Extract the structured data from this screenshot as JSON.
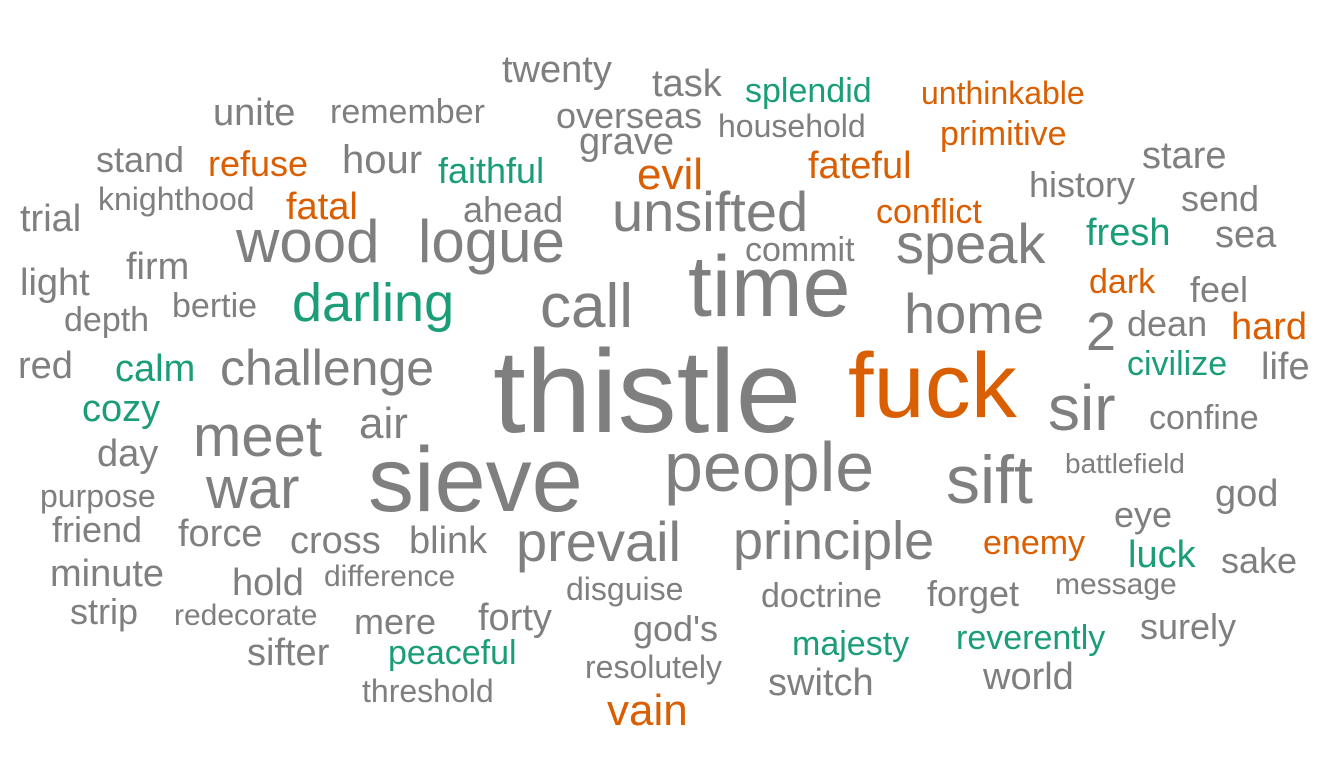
{
  "colors": {
    "neutral": "#7f7f7f",
    "negative": "#d95f02",
    "positive": "#1b9e77"
  },
  "words": [
    {
      "text": "thistle",
      "tone": "neutral"
    },
    {
      "text": "fuck",
      "tone": "negative"
    },
    {
      "text": "sieve",
      "tone": "neutral"
    },
    {
      "text": "time",
      "tone": "neutral"
    },
    {
      "text": "people",
      "tone": "neutral"
    },
    {
      "text": "sir",
      "tone": "neutral"
    },
    {
      "text": "call",
      "tone": "neutral"
    },
    {
      "text": "wood",
      "tone": "neutral"
    },
    {
      "text": "logue",
      "tone": "neutral"
    },
    {
      "text": "speak",
      "tone": "neutral"
    },
    {
      "text": "home",
      "tone": "neutral"
    },
    {
      "text": "meet",
      "tone": "neutral"
    },
    {
      "text": "war",
      "tone": "neutral"
    },
    {
      "text": "sift",
      "tone": "neutral"
    },
    {
      "text": "unsifted",
      "tone": "neutral"
    },
    {
      "text": "prevail",
      "tone": "neutral"
    },
    {
      "text": "principle",
      "tone": "neutral"
    },
    {
      "text": "darling",
      "tone": "positive"
    },
    {
      "text": "challenge",
      "tone": "neutral"
    },
    {
      "text": "2",
      "tone": "neutral"
    },
    {
      "text": "air",
      "tone": "neutral"
    },
    {
      "text": "evil",
      "tone": "negative"
    },
    {
      "text": "hour",
      "tone": "neutral"
    },
    {
      "text": "fateful",
      "tone": "negative"
    },
    {
      "text": "fresh",
      "tone": "positive"
    },
    {
      "text": "sea",
      "tone": "neutral"
    },
    {
      "text": "dean",
      "tone": "neutral"
    },
    {
      "text": "hard",
      "tone": "negative"
    },
    {
      "text": "feel",
      "tone": "neutral"
    },
    {
      "text": "calm",
      "tone": "positive"
    },
    {
      "text": "cozy",
      "tone": "positive"
    },
    {
      "text": "stare",
      "tone": "neutral"
    },
    {
      "text": "history",
      "tone": "neutral"
    },
    {
      "text": "send",
      "tone": "neutral"
    },
    {
      "text": "dark",
      "tone": "negative"
    },
    {
      "text": "civilize",
      "tone": "positive"
    },
    {
      "text": "life",
      "tone": "neutral"
    },
    {
      "text": "confine",
      "tone": "neutral"
    },
    {
      "text": "battlefield",
      "tone": "neutral"
    },
    {
      "text": "god",
      "tone": "neutral"
    },
    {
      "text": "eye",
      "tone": "neutral"
    },
    {
      "text": "luck",
      "tone": "positive"
    },
    {
      "text": "sake",
      "tone": "neutral"
    },
    {
      "text": "enemy",
      "tone": "negative"
    },
    {
      "text": "message",
      "tone": "neutral"
    },
    {
      "text": "surely",
      "tone": "neutral"
    },
    {
      "text": "reverently",
      "tone": "positive"
    },
    {
      "text": "world",
      "tone": "neutral"
    },
    {
      "text": "forget",
      "tone": "neutral"
    },
    {
      "text": "majesty",
      "tone": "positive"
    },
    {
      "text": "switch",
      "tone": "neutral"
    },
    {
      "text": "doctrine",
      "tone": "neutral"
    },
    {
      "text": "god's",
      "tone": "neutral"
    },
    {
      "text": "resolutely",
      "tone": "neutral"
    },
    {
      "text": "disguise",
      "tone": "neutral"
    },
    {
      "text": "vain",
      "tone": "negative"
    },
    {
      "text": "forty",
      "tone": "neutral"
    },
    {
      "text": "mere",
      "tone": "neutral"
    },
    {
      "text": "peaceful",
      "tone": "positive"
    },
    {
      "text": "threshold",
      "tone": "neutral"
    },
    {
      "text": "sifter",
      "tone": "neutral"
    },
    {
      "text": "redecorate",
      "tone": "neutral"
    },
    {
      "text": "hold",
      "tone": "neutral"
    },
    {
      "text": "difference",
      "tone": "neutral"
    },
    {
      "text": "cross",
      "tone": "neutral"
    },
    {
      "text": "blink",
      "tone": "neutral"
    },
    {
      "text": "force",
      "tone": "neutral"
    },
    {
      "text": "strip",
      "tone": "neutral"
    },
    {
      "text": "minute",
      "tone": "neutral"
    },
    {
      "text": "friend",
      "tone": "neutral"
    },
    {
      "text": "purpose",
      "tone": "neutral"
    },
    {
      "text": "day",
      "tone": "neutral"
    },
    {
      "text": "red",
      "tone": "neutral"
    },
    {
      "text": "depth",
      "tone": "neutral"
    },
    {
      "text": "light",
      "tone": "neutral"
    },
    {
      "text": "bertie",
      "tone": "neutral"
    },
    {
      "text": "firm",
      "tone": "neutral"
    },
    {
      "text": "trial",
      "tone": "neutral"
    },
    {
      "text": "knighthood",
      "tone": "neutral"
    },
    {
      "text": "fatal",
      "tone": "negative"
    },
    {
      "text": "stand",
      "tone": "neutral"
    },
    {
      "text": "refuse",
      "tone": "negative"
    },
    {
      "text": "unite",
      "tone": "neutral"
    },
    {
      "text": "remember",
      "tone": "neutral"
    },
    {
      "text": "twenty",
      "tone": "neutral"
    },
    {
      "text": "task",
      "tone": "neutral"
    },
    {
      "text": "splendid",
      "tone": "positive"
    },
    {
      "text": "unthinkable",
      "tone": "negative"
    },
    {
      "text": "overseas",
      "tone": "neutral"
    },
    {
      "text": "household",
      "tone": "neutral"
    },
    {
      "text": "primitive",
      "tone": "negative"
    },
    {
      "text": "grave",
      "tone": "neutral"
    },
    {
      "text": "faithful",
      "tone": "positive"
    },
    {
      "text": "ahead",
      "tone": "neutral"
    },
    {
      "text": "conflict",
      "tone": "negative"
    },
    {
      "text": "commit",
      "tone": "neutral"
    }
  ]
}
